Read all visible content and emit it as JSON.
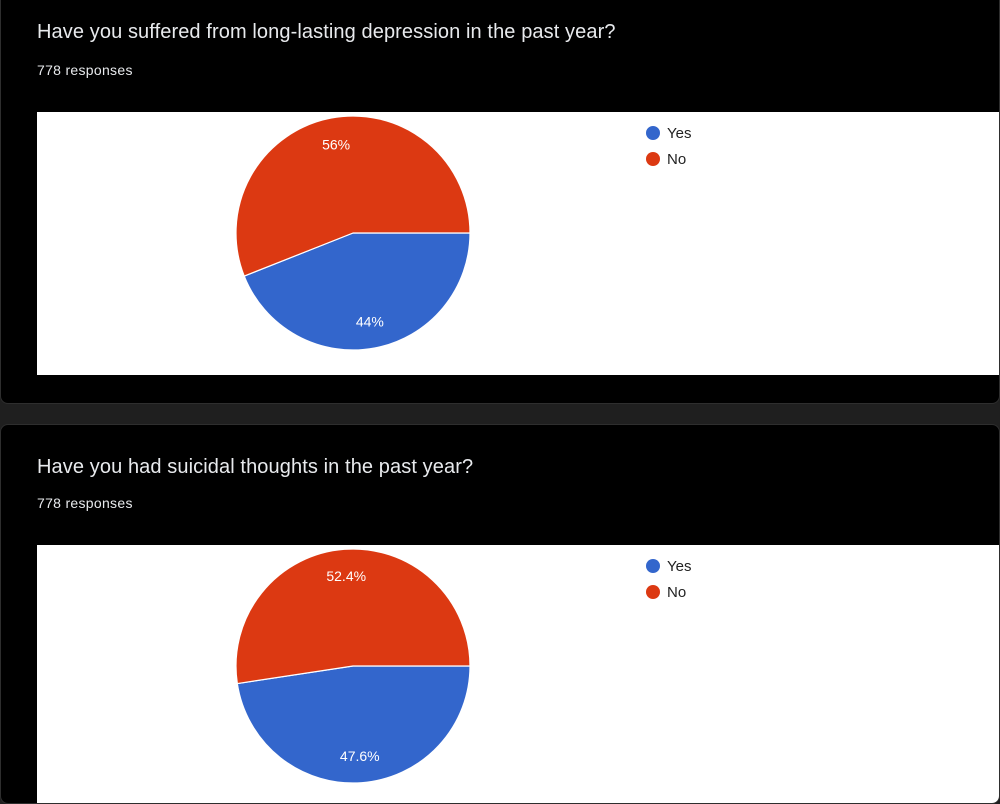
{
  "chart_data": [
    {
      "type": "pie",
      "title": "Have you suffered from long-lasting depression in the past year?",
      "subtitle": "778 responses",
      "categories": [
        "Yes",
        "No"
      ],
      "values": [
        44,
        56
      ],
      "labels": [
        "44%",
        "56%"
      ],
      "colors": [
        "#3366cc",
        "#dc3912"
      ],
      "legend": "top-right"
    },
    {
      "type": "pie",
      "title": "Have you had suicidal thoughts in the past year?",
      "subtitle": "778 responses",
      "categories": [
        "Yes",
        "No"
      ],
      "values": [
        47.6,
        52.4
      ],
      "labels": [
        "47.6%",
        "52.4%"
      ],
      "colors": [
        "#3366cc",
        "#dc3912"
      ],
      "legend": "top-right"
    }
  ]
}
